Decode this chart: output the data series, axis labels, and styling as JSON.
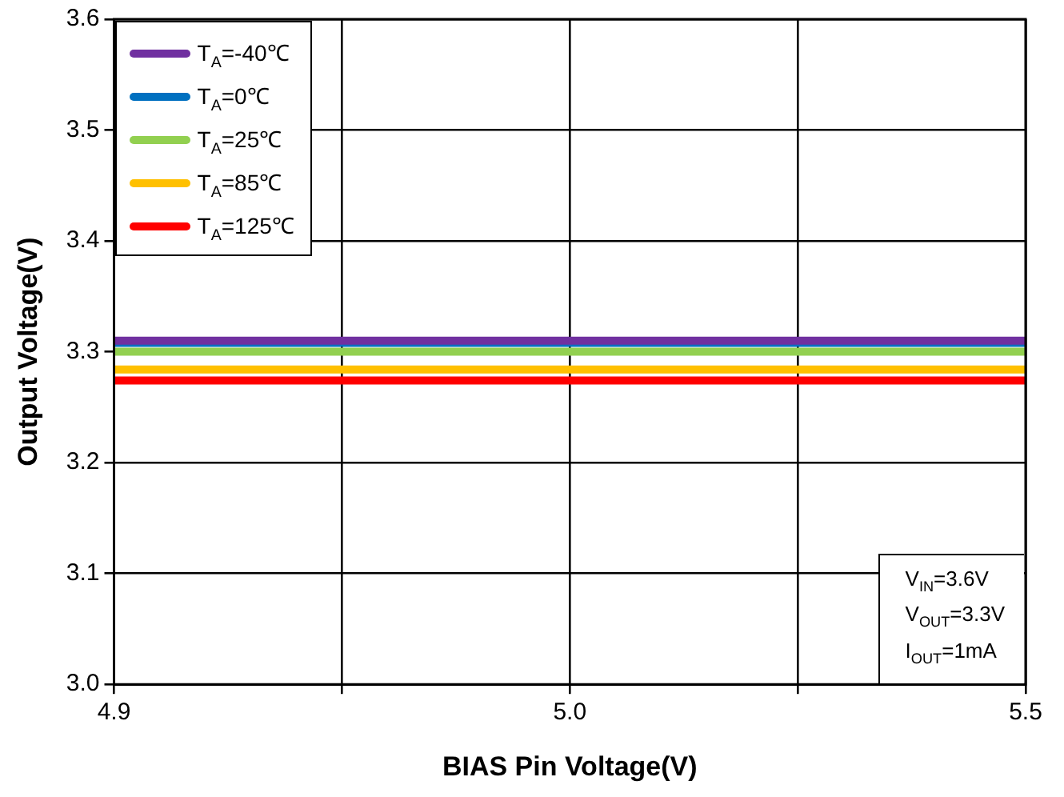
{
  "chart_data": {
    "type": "line",
    "xlabel": "BIAS Pin Voltage(V)",
    "ylabel": "Output Voltage(V)",
    "categories": [
      "4.9",
      null,
      "5.0",
      null,
      "5.5"
    ],
    "series": [
      {
        "name": "T$_{A}$=-40℃",
        "color": "#7030a0",
        "values": [
          3.31,
          3.31,
          3.31,
          3.31,
          3.31
        ]
      },
      {
        "name": "T$_{A}$=0℃",
        "color": "#0070c0",
        "values": [
          3.308,
          3.308,
          3.308,
          3.308,
          3.308
        ]
      },
      {
        "name": "T$_{A}$=25℃",
        "color": "#92d050",
        "values": [
          3.3,
          3.3,
          3.3,
          3.3,
          3.3
        ]
      },
      {
        "name": "T$_{A}$=85℃",
        "color": "#ffc000",
        "values": [
          3.284,
          3.284,
          3.284,
          3.284,
          3.284
        ]
      },
      {
        "name": "T$_{A}$=125℃",
        "color": "#ff0000",
        "values": [
          3.274,
          3.274,
          3.274,
          3.274,
          3.274
        ]
      }
    ],
    "ylim": [
      3.0,
      3.6
    ],
    "yticks": [
      {
        "value": 3.0,
        "label": "3.0"
      },
      3.1,
      3.2,
      3.3,
      3.4,
      3.5,
      3.6
    ],
    "grid": true,
    "legend": "top left",
    "marker": "none",
    "line_style": "solid",
    "annotations": [
      "V$_{IN}$=3.6V",
      "V$_{OUT}$=3.3V",
      "I$_{OUT}$=1mA"
    ]
  }
}
